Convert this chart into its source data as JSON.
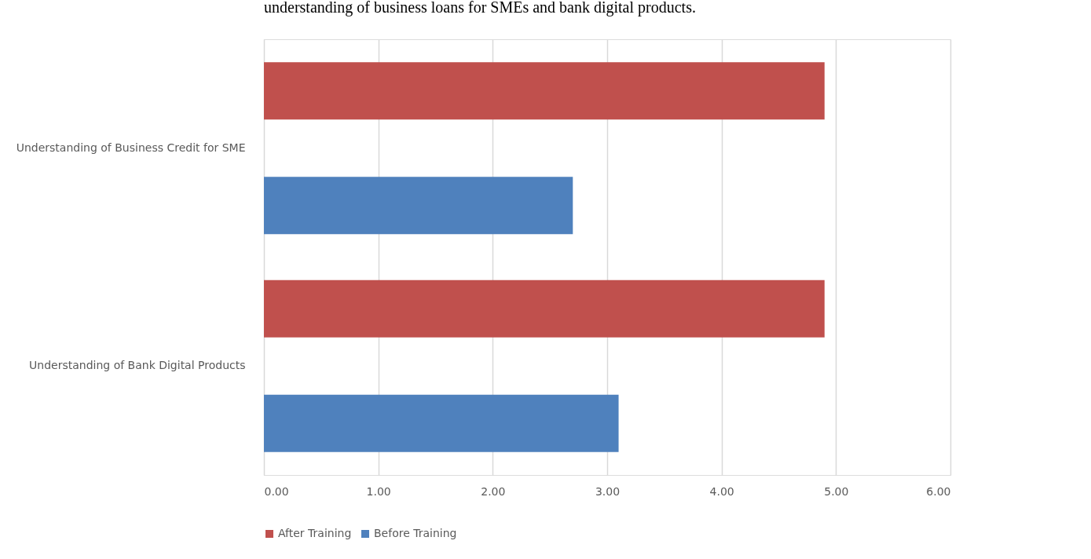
{
  "chart_data": {
    "type": "bar",
    "orientation": "horizontal",
    "categories": [
      "Understanding of Business Credit for SME",
      "Understanding of Bank Digital Products"
    ],
    "series": [
      {
        "name": "After Training",
        "color": "#c0504d",
        "values": [
          4.9,
          4.9
        ]
      },
      {
        "name": "Before Training",
        "color": "#4f81bd",
        "values": [
          2.7,
          3.1
        ]
      }
    ],
    "xlim": [
      0,
      6
    ],
    "xticks": [
      {
        "value": 0,
        "label": "0.00"
      },
      {
        "value": 1,
        "label": "1.00"
      },
      {
        "value": 2,
        "label": "2.00"
      },
      {
        "value": 3,
        "label": "3.00"
      },
      {
        "value": 4,
        "label": "4.00"
      },
      {
        "value": 5,
        "label": "5.00"
      },
      {
        "value": 6,
        "label": "6.00"
      }
    ],
    "grid": "x",
    "legend": "bottom",
    "annotations": [
      "understanding of business loans for SMEs and bank digital products."
    ]
  }
}
